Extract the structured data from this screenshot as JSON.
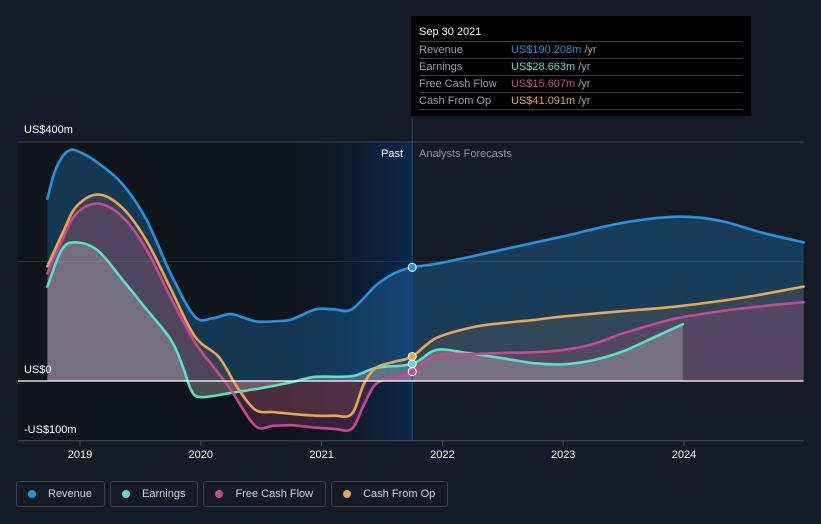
{
  "chart_data": {
    "type": "area",
    "title": "",
    "xlabel": "",
    "ylabel": "",
    "x_ticks": [
      "2019",
      "2020",
      "2021",
      "2022",
      "2023",
      "2024"
    ],
    "y_tick_labels": [
      {
        "value": 400,
        "label": "US$400m"
      },
      {
        "value": 0,
        "label": "US$0"
      },
      {
        "value": -100,
        "label": "-US$100m"
      }
    ],
    "xlim": [
      2018.73,
      2024.99
    ],
    "ylim": [
      -100,
      400
    ],
    "grid": true,
    "past_region": {
      "start": 2020.75,
      "end": 2021.75,
      "label": "Past"
    },
    "forecast_label": "Analysts Forecasts",
    "divider_x": 2021.75,
    "series": [
      {
        "name": "Revenue",
        "color": "#2394df",
        "points": [
          [
            2018.73,
            305
          ],
          [
            2018.8,
            355
          ],
          [
            2018.9,
            385
          ],
          [
            2019.0,
            383
          ],
          [
            2019.15,
            365
          ],
          [
            2019.35,
            330
          ],
          [
            2019.55,
            270
          ],
          [
            2019.75,
            180
          ],
          [
            2019.95,
            108
          ],
          [
            2020.1,
            105
          ],
          [
            2020.25,
            112
          ],
          [
            2020.45,
            100
          ],
          [
            2020.6,
            100
          ],
          [
            2020.75,
            103
          ],
          [
            2020.95,
            120
          ],
          [
            2021.1,
            120
          ],
          [
            2021.25,
            120
          ],
          [
            2021.45,
            160
          ],
          [
            2021.6,
            180
          ],
          [
            2021.75,
            190.2
          ],
          [
            2022.0,
            198
          ],
          [
            2022.5,
            220
          ],
          [
            2023.0,
            242
          ],
          [
            2023.5,
            265
          ],
          [
            2023.95,
            275
          ],
          [
            2024.3,
            268
          ],
          [
            2024.65,
            248
          ],
          [
            2024.99,
            232
          ]
        ]
      },
      {
        "name": "Earnings",
        "color": "#58e0c9",
        "points": [
          [
            2018.73,
            158
          ],
          [
            2018.85,
            220
          ],
          [
            2018.97,
            232
          ],
          [
            2019.15,
            218
          ],
          [
            2019.35,
            170
          ],
          [
            2019.55,
            120
          ],
          [
            2019.75,
            70
          ],
          [
            2019.85,
            25
          ],
          [
            2019.92,
            -15
          ],
          [
            2020.0,
            -27
          ],
          [
            2020.25,
            -20
          ],
          [
            2020.5,
            -12
          ],
          [
            2020.75,
            -2
          ],
          [
            2020.95,
            7
          ],
          [
            2021.25,
            8
          ],
          [
            2021.45,
            22
          ],
          [
            2021.75,
            28.7
          ],
          [
            2021.95,
            52
          ],
          [
            2022.2,
            47
          ],
          [
            2022.5,
            38
          ],
          [
            2022.75,
            30
          ],
          [
            2023.0,
            28
          ],
          [
            2023.25,
            35
          ],
          [
            2023.5,
            50
          ],
          [
            2023.75,
            73
          ],
          [
            2023.99,
            95
          ]
        ]
      },
      {
        "name": "Free Cash Flow",
        "color": "#c84990",
        "points": [
          [
            2018.73,
            180
          ],
          [
            2018.85,
            235
          ],
          [
            2018.97,
            280
          ],
          [
            2019.15,
            297
          ],
          [
            2019.35,
            275
          ],
          [
            2019.55,
            220
          ],
          [
            2019.75,
            140
          ],
          [
            2019.95,
            65
          ],
          [
            2020.1,
            25
          ],
          [
            2020.25,
            -15
          ],
          [
            2020.45,
            -75
          ],
          [
            2020.6,
            -75
          ],
          [
            2020.75,
            -74
          ],
          [
            2020.95,
            -78
          ],
          [
            2021.1,
            -80
          ],
          [
            2021.25,
            -80
          ],
          [
            2021.35,
            -40
          ],
          [
            2021.45,
            -5
          ],
          [
            2021.6,
            5
          ],
          [
            2021.75,
            15.6
          ],
          [
            2021.95,
            43
          ],
          [
            2022.25,
            45
          ],
          [
            2022.5,
            47
          ],
          [
            2022.75,
            48
          ],
          [
            2023.0,
            52
          ],
          [
            2023.25,
            62
          ],
          [
            2023.5,
            80
          ],
          [
            2023.75,
            95
          ],
          [
            2023.99,
            107
          ],
          [
            2024.5,
            122
          ],
          [
            2024.99,
            132
          ]
        ]
      },
      {
        "name": "Cash From Op",
        "color": "#e6a653",
        "points": [
          [
            2018.73,
            192
          ],
          [
            2018.85,
            245
          ],
          [
            2018.97,
            292
          ],
          [
            2019.15,
            312
          ],
          [
            2019.35,
            290
          ],
          [
            2019.55,
            235
          ],
          [
            2019.75,
            155
          ],
          [
            2019.95,
            75
          ],
          [
            2020.15,
            40
          ],
          [
            2020.3,
            -10
          ],
          [
            2020.45,
            -48
          ],
          [
            2020.6,
            -52
          ],
          [
            2020.75,
            -55
          ],
          [
            2020.95,
            -58
          ],
          [
            2021.1,
            -58
          ],
          [
            2021.25,
            -55
          ],
          [
            2021.35,
            -5
          ],
          [
            2021.45,
            22
          ],
          [
            2021.6,
            32
          ],
          [
            2021.75,
            41.1
          ],
          [
            2021.95,
            72
          ],
          [
            2022.25,
            90
          ],
          [
            2022.5,
            97
          ],
          [
            2022.75,
            102
          ],
          [
            2023.0,
            108
          ],
          [
            2023.5,
            117
          ],
          [
            2023.95,
            125
          ],
          [
            2024.5,
            140
          ],
          [
            2024.99,
            158
          ]
        ]
      }
    ],
    "highlight": {
      "date": "Sep 30 2021",
      "x": 2021.75,
      "values": [
        {
          "name": "Revenue",
          "value": 190.208
        },
        {
          "name": "Earnings",
          "value": 28.663
        },
        {
          "name": "Free Cash Flow",
          "value": 15.607
        },
        {
          "name": "Cash From Op",
          "value": 41.091
        }
      ]
    }
  },
  "tooltip": {
    "date": "Sep 30 2021",
    "rows": [
      {
        "label": "Revenue",
        "value": "US$190.208m",
        "unit": "/yr",
        "color": "#2394df"
      },
      {
        "label": "Earnings",
        "value": "US$28.663m",
        "unit": "/yr",
        "color": "#58e0c9"
      },
      {
        "label": "Free Cash Flow",
        "value": "US$15.607m",
        "unit": "/yr",
        "color": "#c84990"
      },
      {
        "label": "Cash From Op",
        "value": "US$41.091m",
        "unit": "/yr",
        "color": "#e6a653"
      }
    ]
  },
  "legend": [
    {
      "label": "Revenue",
      "color": "#2394df"
    },
    {
      "label": "Earnings",
      "color": "#58e0c9"
    },
    {
      "label": "Free Cash Flow",
      "color": "#c84990"
    },
    {
      "label": "Cash From Op",
      "color": "#e6a653"
    }
  ]
}
